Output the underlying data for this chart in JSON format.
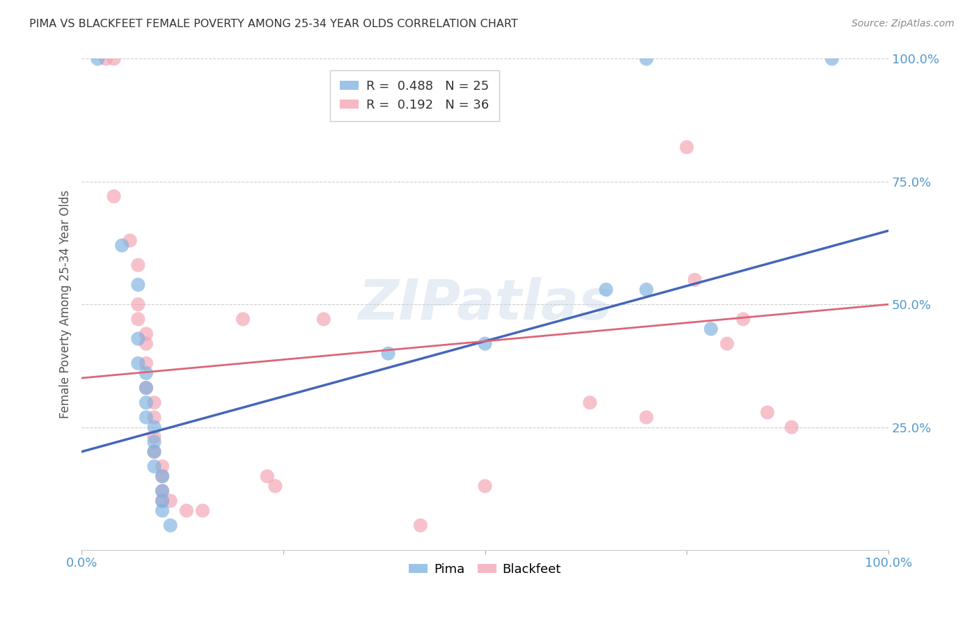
{
  "title": "PIMA VS BLACKFEET FEMALE POVERTY AMONG 25-34 YEAR OLDS CORRELATION CHART",
  "source": "Source: ZipAtlas.com",
  "ylabel": "Female Poverty Among 25-34 Year Olds",
  "xlim": [
    0.0,
    1.0
  ],
  "ylim": [
    0.0,
    1.0
  ],
  "background_color": "#ffffff",
  "grid_color": "#cccccc",
  "watermark": "ZIPatlas",
  "pima_color": "#7ab0e0",
  "blackfeet_color": "#f4a0b0",
  "pima_line_color": "#4466bb",
  "blackfeet_line_color": "#dd6677",
  "tick_color": "#5599cc",
  "pima_scatter": [
    [
      0.02,
      1.0
    ],
    [
      0.7,
      1.0
    ],
    [
      0.93,
      1.0
    ],
    [
      0.05,
      0.62
    ],
    [
      0.07,
      0.54
    ],
    [
      0.07,
      0.43
    ],
    [
      0.07,
      0.38
    ],
    [
      0.08,
      0.36
    ],
    [
      0.08,
      0.33
    ],
    [
      0.08,
      0.3
    ],
    [
      0.08,
      0.27
    ],
    [
      0.09,
      0.25
    ],
    [
      0.09,
      0.22
    ],
    [
      0.09,
      0.2
    ],
    [
      0.09,
      0.17
    ],
    [
      0.1,
      0.15
    ],
    [
      0.1,
      0.12
    ],
    [
      0.1,
      0.1
    ],
    [
      0.1,
      0.08
    ],
    [
      0.11,
      0.05
    ],
    [
      0.38,
      0.4
    ],
    [
      0.5,
      0.42
    ],
    [
      0.65,
      0.53
    ],
    [
      0.7,
      0.53
    ],
    [
      0.78,
      0.45
    ]
  ],
  "blackfeet_scatter": [
    [
      0.03,
      1.0
    ],
    [
      0.04,
      1.0
    ],
    [
      0.04,
      0.72
    ],
    [
      0.06,
      0.63
    ],
    [
      0.07,
      0.58
    ],
    [
      0.07,
      0.5
    ],
    [
      0.07,
      0.47
    ],
    [
      0.08,
      0.44
    ],
    [
      0.08,
      0.42
    ],
    [
      0.08,
      0.38
    ],
    [
      0.08,
      0.33
    ],
    [
      0.09,
      0.3
    ],
    [
      0.09,
      0.27
    ],
    [
      0.09,
      0.23
    ],
    [
      0.09,
      0.2
    ],
    [
      0.1,
      0.17
    ],
    [
      0.1,
      0.15
    ],
    [
      0.1,
      0.12
    ],
    [
      0.1,
      0.1
    ],
    [
      0.11,
      0.1
    ],
    [
      0.13,
      0.08
    ],
    [
      0.15,
      0.08
    ],
    [
      0.2,
      0.47
    ],
    [
      0.23,
      0.15
    ],
    [
      0.24,
      0.13
    ],
    [
      0.3,
      0.47
    ],
    [
      0.42,
      0.05
    ],
    [
      0.5,
      0.13
    ],
    [
      0.63,
      0.3
    ],
    [
      0.7,
      0.27
    ],
    [
      0.75,
      0.82
    ],
    [
      0.76,
      0.55
    ],
    [
      0.8,
      0.42
    ],
    [
      0.82,
      0.47
    ],
    [
      0.85,
      0.28
    ],
    [
      0.88,
      0.25
    ]
  ],
  "pima_line_x0": 0.0,
  "pima_line_y0": 0.2,
  "pima_line_x1": 1.0,
  "pima_line_y1": 0.65,
  "blackfeet_line_x0": 0.0,
  "blackfeet_line_y0": 0.35,
  "blackfeet_line_x1": 1.0,
  "blackfeet_line_y1": 0.5
}
